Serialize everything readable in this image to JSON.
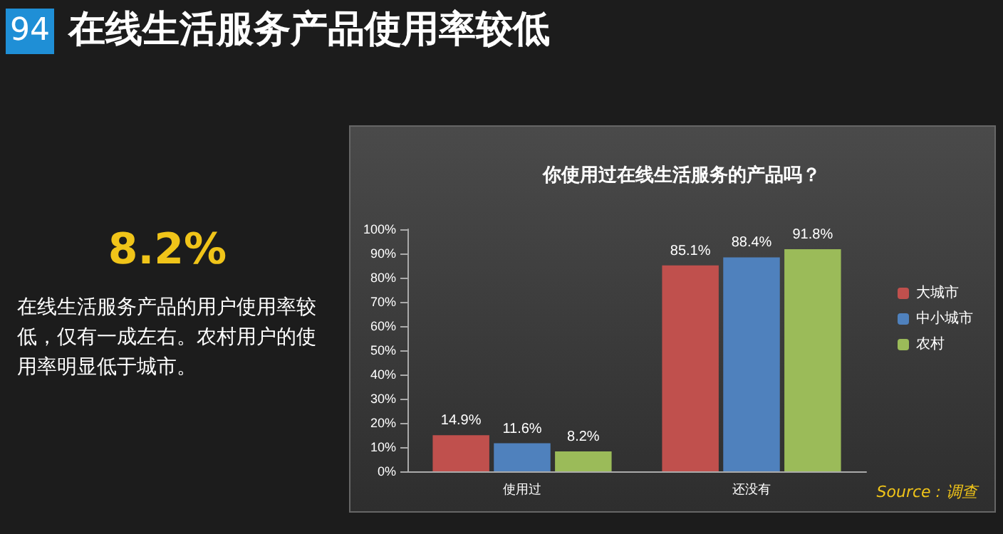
{
  "chart_data": {
    "type": "bar",
    "title": "在线生活服务产品使用率较低",
    "subtitle": "你使用过在线生活服务的产品吗？",
    "annotations": [
      "94",
      "8.2%",
      "在线生活服务产品的用户使用率较低，仅有一成左右。农村用户的使用率明显低于城市。",
      "Source : 调查"
    ],
    "categories": [
      "使用过",
      "还没有"
    ],
    "series": [
      {
        "name": "大城市",
        "color": "#c0504d",
        "values": [
          14.9,
          85.1
        ],
        "value_labels": [
          "14.9%",
          "85.1%"
        ]
      },
      {
        "name": "中小城市",
        "color": "#4f81bd",
        "values": [
          11.6,
          88.4
        ],
        "value_labels": [
          "11.6%",
          "88.4%"
        ]
      },
      {
        "name": "农村",
        "color": "#9bbb59",
        "values": [
          8.2,
          91.8
        ],
        "value_labels": [
          "8.2%",
          "91.8%"
        ]
      }
    ],
    "ylim": [
      0,
      100
    ],
    "yticks": [
      {
        "value": 0,
        "label": "0%"
      },
      {
        "value": 10,
        "label": "10%"
      },
      {
        "value": 20,
        "label": "20%"
      },
      {
        "value": 30,
        "label": "30%"
      },
      {
        "value": 40,
        "label": "40%"
      },
      {
        "value": 50,
        "label": "50%"
      },
      {
        "value": 60,
        "label": "60%"
      },
      {
        "value": 70,
        "label": "70%"
      },
      {
        "value": 80,
        "label": "80%"
      },
      {
        "value": 90,
        "label": "90%"
      },
      {
        "value": 100,
        "label": "100%"
      }
    ],
    "grid": false,
    "legend": "right"
  }
}
